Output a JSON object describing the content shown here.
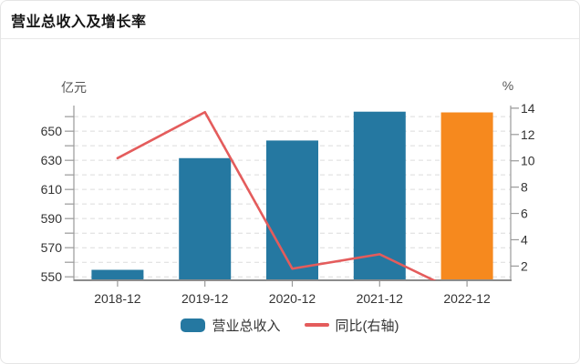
{
  "card": {
    "title": "营业总收入及增长率"
  },
  "chart_data": {
    "type": "bar",
    "subtype": "bar-line-combo",
    "title": "营业总收入及增长率",
    "categories": [
      "2018-12",
      "2019-12",
      "2020-12",
      "2021-12",
      "2022-12"
    ],
    "series": [
      {
        "name": "营业总收入",
        "type": "bar",
        "yaxis": "left",
        "unit": "亿元",
        "values": [
          554.8,
          631.5,
          643.6,
          663.4,
          662.9
        ],
        "bar_colors": [
          "#2578a1",
          "#2578a1",
          "#2578a1",
          "#2578a1",
          "#f6891e"
        ]
      },
      {
        "name": "同比(右轴)",
        "type": "line",
        "yaxis": "right",
        "unit": "%",
        "values": [
          10.2,
          13.7,
          1.8,
          2.9,
          -0.3
        ],
        "color": "#e45c5c"
      }
    ],
    "left_axis": {
      "name": "亿元",
      "min": 547,
      "max": 667.6,
      "tick_step": 10,
      "label_values": [
        550,
        570,
        590,
        610,
        630,
        650
      ]
    },
    "right_axis": {
      "name": "%",
      "min": 0.85,
      "max": 14.2,
      "label_values": [
        2,
        4,
        6,
        8,
        10,
        12,
        14
      ]
    },
    "grid": {
      "horizontal_dashed": true
    },
    "legend_position": "bottom-center"
  },
  "legend": {
    "items": [
      {
        "label": "营业总收入",
        "swatch": "bar",
        "color": "#2578a1"
      },
      {
        "label": "同比(右轴)",
        "swatch": "line",
        "color": "#e45c5c"
      }
    ]
  },
  "colors": {
    "bar_blue": "#2578a1",
    "bar_orange": "#f6891e",
    "line_red": "#e45c5c",
    "axis_line": "#999999",
    "tick_label": "#333333",
    "axis_name": "#555555",
    "gridline": "#dcdcdc",
    "card_border": "#e5e5e5",
    "title_text": "#151515"
  }
}
